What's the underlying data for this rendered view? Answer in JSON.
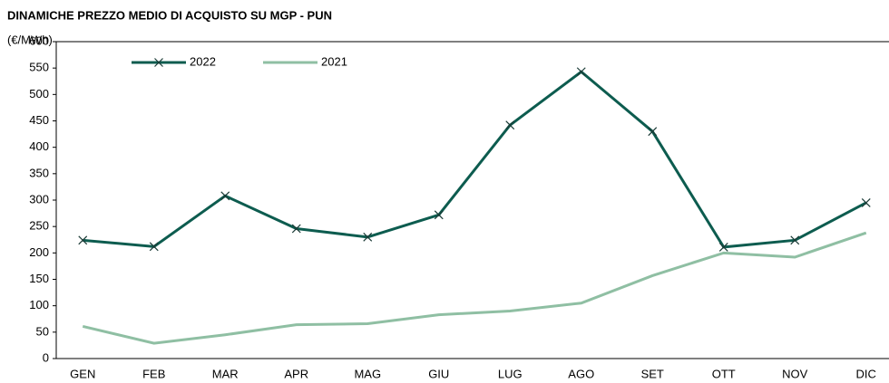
{
  "chart_data": {
    "type": "line",
    "title": "DINAMICHE PREZZO MEDIO DI ACQUISTO SU MGP - PUN",
    "y_label": "(€/MWh)",
    "categories": [
      "GEN",
      "FEB",
      "MAR",
      "APR",
      "MAG",
      "GIU",
      "LUG",
      "AGO",
      "SET",
      "OTT",
      "NOV",
      "DIC"
    ],
    "series": [
      {
        "name": "2022",
        "color": "#0d5c4f",
        "marker": "x",
        "values": [
          224,
          212,
          308,
          246,
          230,
          272,
          442,
          543,
          430,
          211,
          224,
          295
        ]
      },
      {
        "name": "2021",
        "color": "#8fbfa3",
        "values": [
          61,
          29,
          45,
          64,
          66,
          83,
          90,
          105,
          157,
          200,
          192,
          238
        ]
      }
    ],
    "ylim": [
      0,
      600
    ],
    "yticks": [
      0,
      50,
      100,
      150,
      200,
      250,
      300,
      350,
      400,
      450,
      500,
      550,
      600
    ],
    "grid": false
  }
}
